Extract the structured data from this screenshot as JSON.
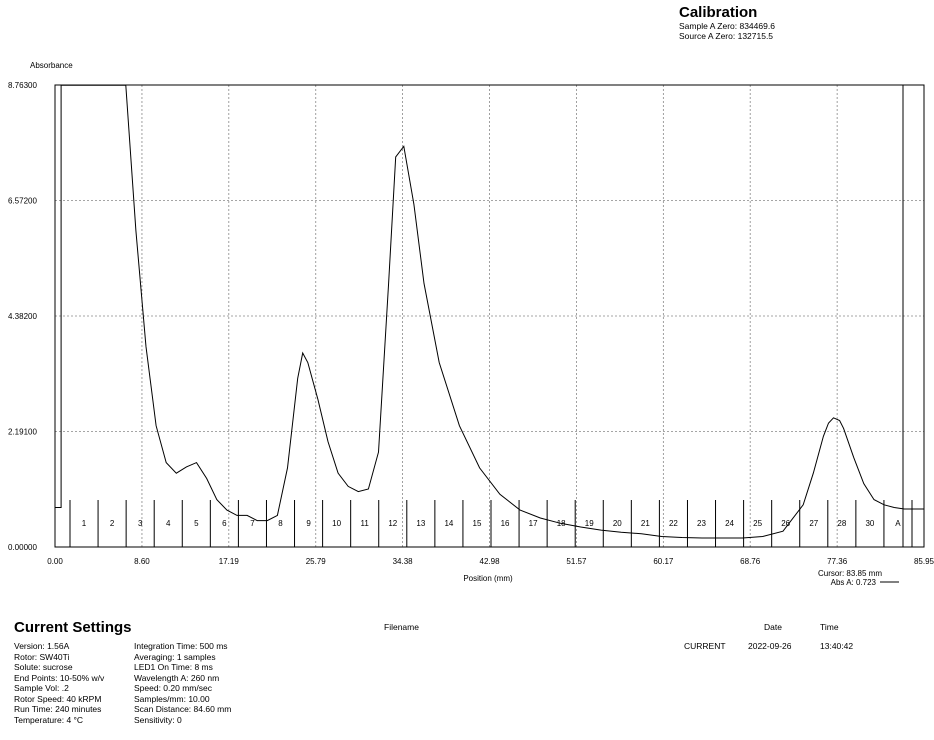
{
  "calibration": {
    "title": "Calibration",
    "lines": [
      "Sample A Zero: 834469.6",
      "Source A Zero: 132715.5"
    ]
  },
  "chart_data": {
    "type": "line",
    "ylabel": "Absorbance",
    "xlabel": "Position (mm)",
    "xlim": [
      0,
      85.95
    ],
    "ylim": [
      0,
      8.763
    ],
    "x_ticks": [
      "0.00",
      "8.60",
      "17.19",
      "25.79",
      "34.38",
      "42.98",
      "51.57",
      "60.17",
      "68.76",
      "77.36",
      "85.95"
    ],
    "y_ticks": [
      "0.00000",
      "2.19100",
      "4.38200",
      "6.57200",
      "8.76300"
    ],
    "grid": "dashed",
    "series": [
      {
        "x": [
          0.0,
          0.3,
          0.6,
          0.6,
          0.9,
          1.2,
          2.0,
          3.0,
          4.0,
          5.0,
          6.0,
          7.0,
          8.0,
          9.0,
          10.0,
          11.0,
          12.0,
          13.0,
          14.0,
          15.0,
          16.0,
          17.0,
          18.0,
          19.0,
          20.0,
          21.0,
          22.0,
          23.0,
          24.0,
          24.5,
          25.0,
          26.0,
          27.0,
          28.0,
          29.0,
          30.0,
          31.0,
          32.0,
          33.0,
          33.7,
          34.5,
          35.5,
          36.5,
          38.0,
          40.0,
          42.0,
          44.0,
          46.0,
          48.0,
          50.0,
          52.0,
          54.0,
          56.0,
          58.0,
          60.0,
          62.0,
          64.0,
          66.0,
          68.0,
          70.0,
          72.0,
          74.0,
          75.0,
          76.0,
          76.5,
          77.0,
          77.6,
          78.0,
          79.0,
          80.0,
          81.0,
          82.0,
          83.0,
          84.0,
          85.0,
          85.95
        ],
        "y": [
          0.75,
          0.75,
          0.75,
          8.76,
          8.76,
          8.76,
          8.76,
          8.76,
          8.76,
          8.76,
          8.76,
          8.76,
          6.0,
          3.8,
          2.3,
          1.6,
          1.4,
          1.52,
          1.6,
          1.3,
          0.9,
          0.7,
          0.6,
          0.6,
          0.5,
          0.5,
          0.6,
          1.5,
          3.2,
          3.68,
          3.5,
          2.8,
          2.0,
          1.4,
          1.15,
          1.05,
          1.1,
          1.8,
          5.0,
          7.4,
          7.6,
          6.5,
          5.0,
          3.5,
          2.3,
          1.5,
          1.0,
          0.7,
          0.55,
          0.45,
          0.38,
          0.32,
          0.28,
          0.25,
          0.2,
          0.18,
          0.17,
          0.17,
          0.17,
          0.2,
          0.3,
          0.8,
          1.4,
          2.1,
          2.35,
          2.45,
          2.4,
          2.25,
          1.7,
          1.2,
          0.9,
          0.8,
          0.75,
          0.72,
          0.72,
          0.72
        ]
      }
    ],
    "fractions": [
      "1",
      "2",
      "3",
      "4",
      "5",
      "6",
      "7",
      "8",
      "9",
      "10",
      "11",
      "12",
      "13",
      "14",
      "15",
      "16",
      "17",
      "18",
      "19",
      "20",
      "21",
      "22",
      "23",
      "24",
      "25",
      "26",
      "27",
      "28",
      "30",
      "A"
    ],
    "cursor": {
      "label": "Cursor: 83.85 mm",
      "value": "Abs A: 0.723"
    }
  },
  "current_settings": {
    "title": "Current Settings",
    "col1": [
      "Version: 1.56A",
      "Rotor: SW40Ti",
      "Solute: sucrose",
      "End Points: 10-50% w/v",
      "Sample Vol: .2",
      "Rotor Speed: 40 kRPM",
      "Run Time: 240 minutes",
      "Temperature: 4 °C"
    ],
    "col2": [
      "Integration Time: 500 ms",
      "Averaging: 1 samples",
      "LED1 On Time: 8 ms",
      "Wavelength A: 260 nm",
      "Speed: 0.20 mm/sec",
      "Samples/mm: 10.00",
      "Scan Distance: 84.60 mm",
      "Sensitivity: 0"
    ]
  },
  "file_info": {
    "filename_header": "Filename",
    "date_header": "Date",
    "time_header": "Time",
    "filename": "CURRENT",
    "date": "2022-09-26",
    "time": "13:40:42"
  }
}
